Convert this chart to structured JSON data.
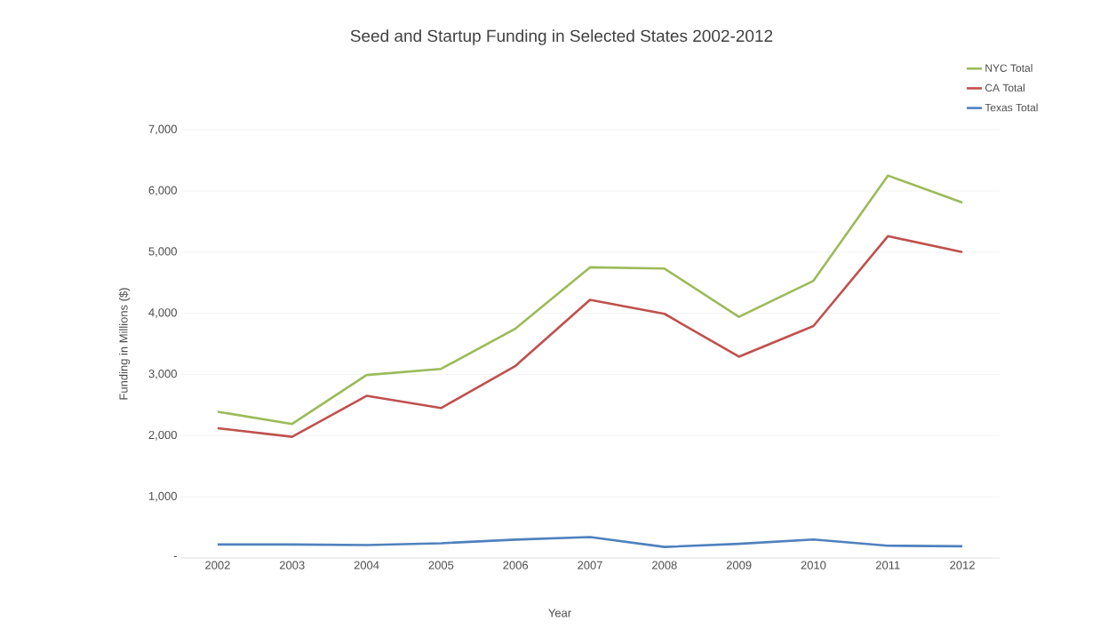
{
  "chart_data": {
    "type": "line",
    "title": "Seed and Startup Funding in Selected States 2002-2012",
    "xlabel": "Year",
    "ylabel": "Funding in Millions ($)",
    "categories": [
      "2002",
      "2003",
      "2004",
      "2005",
      "2006",
      "2007",
      "2008",
      "2009",
      "2010",
      "2011",
      "2012"
    ],
    "series": [
      {
        "name": "NYC Total",
        "color": "#9bbb59",
        "values": [
          2390,
          2190,
          2990,
          3090,
          3750,
          4750,
          4730,
          3940,
          4530,
          6250,
          5810
        ]
      },
      {
        "name": "CA Total",
        "color": "#c0504d",
        "values": [
          2120,
          1980,
          2650,
          2450,
          3140,
          4220,
          3990,
          3290,
          3790,
          5260,
          5000
        ]
      },
      {
        "name": "Texas Total",
        "color": "#4f81bd",
        "values": [
          220,
          220,
          210,
          240,
          300,
          340,
          180,
          230,
          300,
          200,
          190
        ]
      }
    ],
    "ylim": [
      0,
      7000
    ],
    "yticks": [
      {
        "value": 0,
        "label": "-"
      },
      {
        "value": 1000,
        "label": "1,000"
      },
      {
        "value": 2000,
        "label": "2,000"
      },
      {
        "value": 3000,
        "label": "3,000"
      },
      {
        "value": 4000,
        "label": "4,000"
      },
      {
        "value": 5000,
        "label": "5,000"
      },
      {
        "value": 6000,
        "label": "6,000"
      },
      {
        "value": 7000,
        "label": "7,000"
      }
    ],
    "grid": "y",
    "legend": "top right",
    "marker": "none",
    "line_style": "solid"
  }
}
